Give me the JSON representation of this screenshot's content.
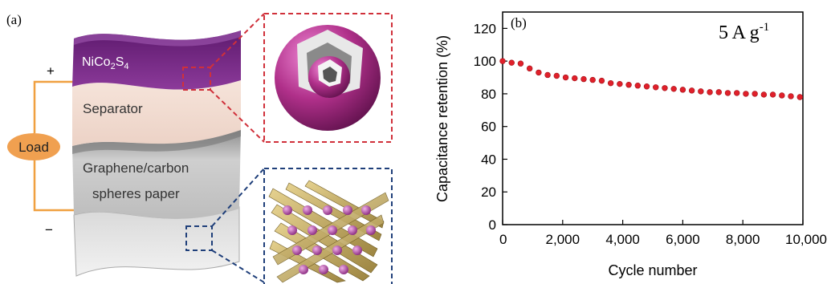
{
  "panel_a": {
    "label": "(a)",
    "plus": "+",
    "minus": "−",
    "load": "Load",
    "top_layer_base": "NiCo",
    "top_layer_sub1": "2",
    "top_layer_mid": "S",
    "top_layer_sub2": "4",
    "separator": "Separator",
    "bottom_layer_line1": "Graphene/carbon",
    "bottom_layer_line2": "spheres paper",
    "colors": {
      "nico2s4": "#7a2a8a",
      "separator": "#f3ddd2",
      "graphene": "#c9c9c9",
      "load": "#f0a050",
      "wire": "#f0a040",
      "red_frame": "#d0303a",
      "blue_frame": "#1f3f7a",
      "sphere": "#b0308a",
      "rods": "#c8b060"
    },
    "icons": [
      "hollow-sphere-icon",
      "carbon-sphere-lattice-icon"
    ]
  },
  "panel_b": {
    "label": "(b)",
    "annotation_base": "5 A g",
    "annotation_sup": "-1",
    "chart_data": {
      "type": "scatter",
      "xlabel": "Cycle number",
      "ylabel": "Capacitance retention (%)",
      "xlim": [
        0,
        10000
      ],
      "ylim": [
        0,
        130
      ],
      "xticks": [
        0,
        2000,
        4000,
        6000,
        8000,
        10000
      ],
      "xtick_labels": [
        "0",
        "2,000",
        "4,000",
        "6,000",
        "8,000",
        "10,000"
      ],
      "yticks": [
        0,
        20,
        40,
        60,
        80,
        100,
        120
      ],
      "ytick_labels": [
        "0",
        "20",
        "40",
        "60",
        "80",
        "100",
        "120"
      ],
      "grid": false,
      "marker_color": "#e0202a",
      "series": [
        {
          "x": [
            0,
            300,
            600,
            900,
            1200,
            1500,
            1800,
            2100,
            2400,
            2700,
            3000,
            3300,
            3600,
            3900,
            4200,
            4500,
            4800,
            5100,
            5400,
            5700,
            6000,
            6300,
            6600,
            6900,
            7200,
            7500,
            7800,
            8100,
            8400,
            8700,
            9000,
            9300,
            9600,
            9900
          ],
          "y": [
            100,
            99,
            98.5,
            95.5,
            93,
            91.5,
            91,
            90,
            89.5,
            89,
            88.5,
            88,
            86.5,
            86,
            85.5,
            85,
            84.5,
            84,
            83.5,
            83,
            82.5,
            82,
            81.5,
            81,
            81,
            80.5,
            80.5,
            80,
            80,
            79.5,
            79.5,
            79,
            78.5,
            78
          ]
        }
      ]
    }
  }
}
